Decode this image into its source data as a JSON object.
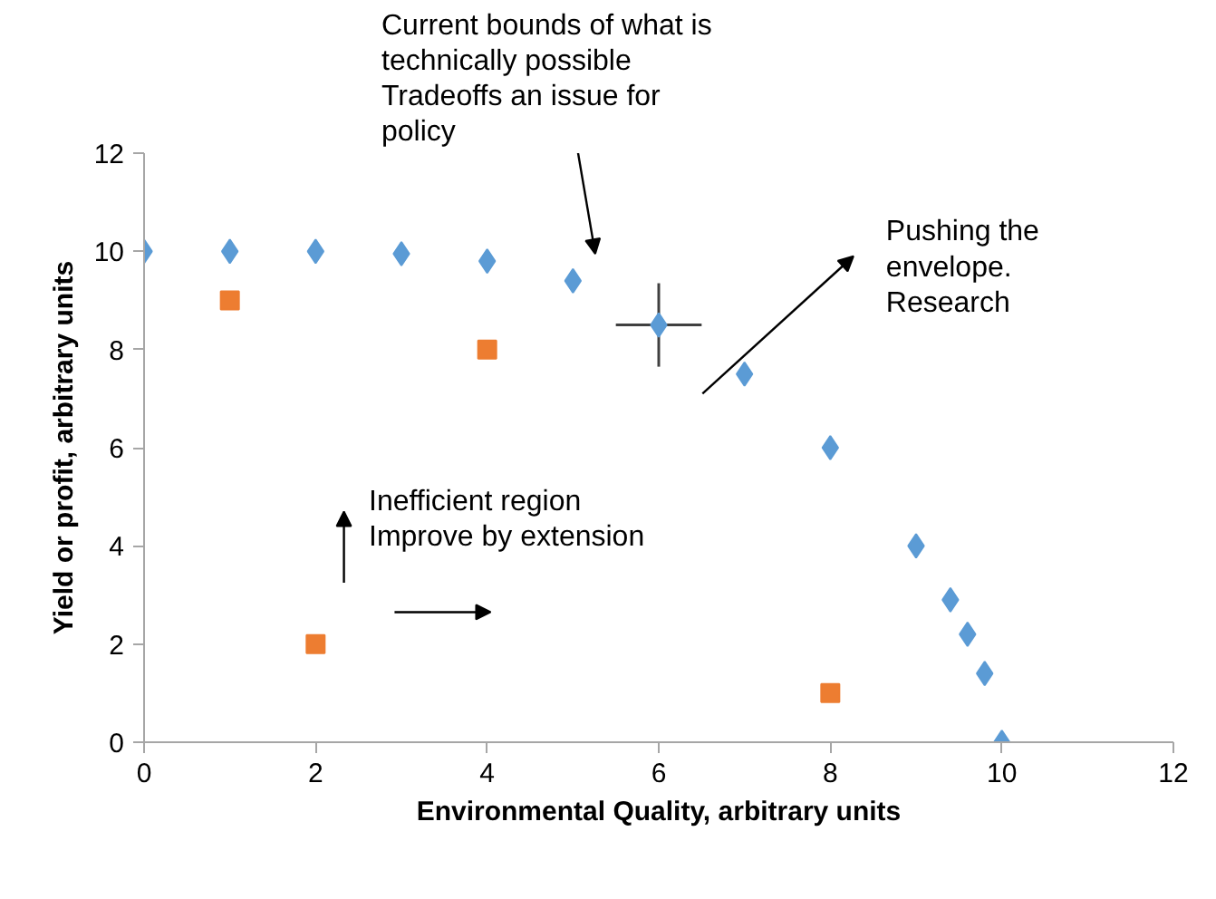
{
  "chart_data": {
    "type": "scatter",
    "xlabel": "Environmental Quality, arbitrary units",
    "ylabel": "Yield or profit, arbitrary units",
    "xlim": [
      0,
      12
    ],
    "ylim": [
      0,
      12
    ],
    "xticks": [
      0,
      2,
      4,
      6,
      8,
      10,
      12
    ],
    "yticks": [
      0,
      2,
      4,
      6,
      8,
      10,
      12
    ],
    "grid": false,
    "series": [
      {
        "color": "#5b9bd5",
        "marker": "diamond",
        "x": [
          0,
          1,
          2,
          3,
          4,
          5,
          6,
          7,
          8,
          9,
          9.4,
          9.6,
          9.8,
          10
        ],
        "values": [
          10,
          10,
          10,
          9.95,
          9.8,
          9.4,
          8.5,
          7.5,
          6,
          4,
          2.9,
          2.2,
          1.4,
          0
        ],
        "errors": [
          null,
          null,
          null,
          null,
          null,
          null,
          0.85,
          null,
          null,
          null,
          null,
          null,
          null,
          null
        ],
        "xerrors": [
          null,
          null,
          null,
          null,
          null,
          null,
          0.5,
          null,
          null,
          null,
          null,
          null,
          null,
          null
        ]
      },
      {
        "color": "#ed7d31",
        "marker": "square",
        "x": [
          1,
          2,
          4,
          8
        ],
        "values": [
          9,
          2,
          8,
          1
        ]
      }
    ],
    "annotations": [
      "Current bounds of what is\ntechnically possible\nTradeoffs an issue for\n policy",
      "Pushing the\nenvelope.\nResearch",
      "Inefficient region\nImprove by extension"
    ]
  }
}
